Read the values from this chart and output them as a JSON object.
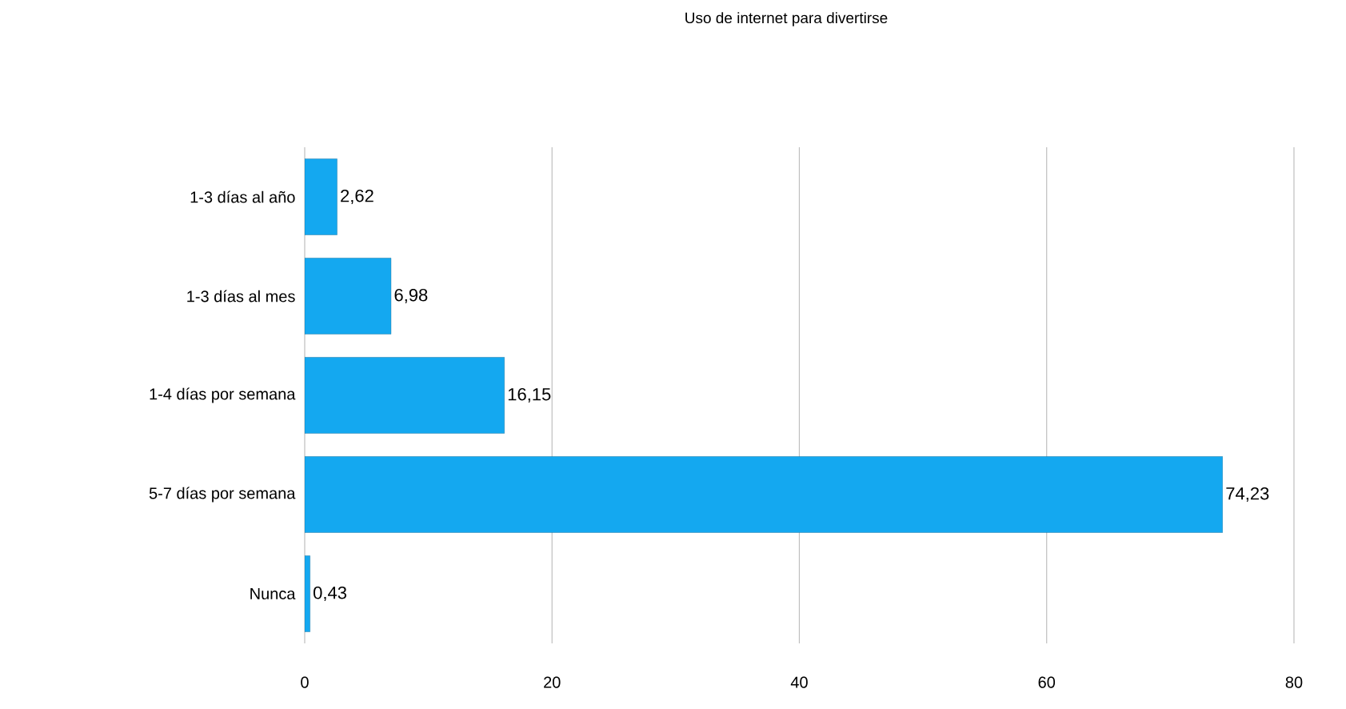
{
  "chart_data": {
    "type": "bar",
    "orientation": "horizontal",
    "title": "Uso de internet para divertirse",
    "categories": [
      "1-3 días al año",
      "1-3 días al mes",
      "1-4 días por semana",
      "5-7 días por semana",
      "Nunca"
    ],
    "values": [
      2.62,
      6.98,
      16.15,
      74.23,
      0.43
    ],
    "value_labels": [
      "2,62",
      "6,98",
      "16,15",
      "74,23",
      "0,43"
    ],
    "color": "#14a8f0",
    "xlim": [
      0,
      80
    ],
    "xticks": [
      0,
      20,
      40,
      60,
      80
    ],
    "grid": "x"
  }
}
